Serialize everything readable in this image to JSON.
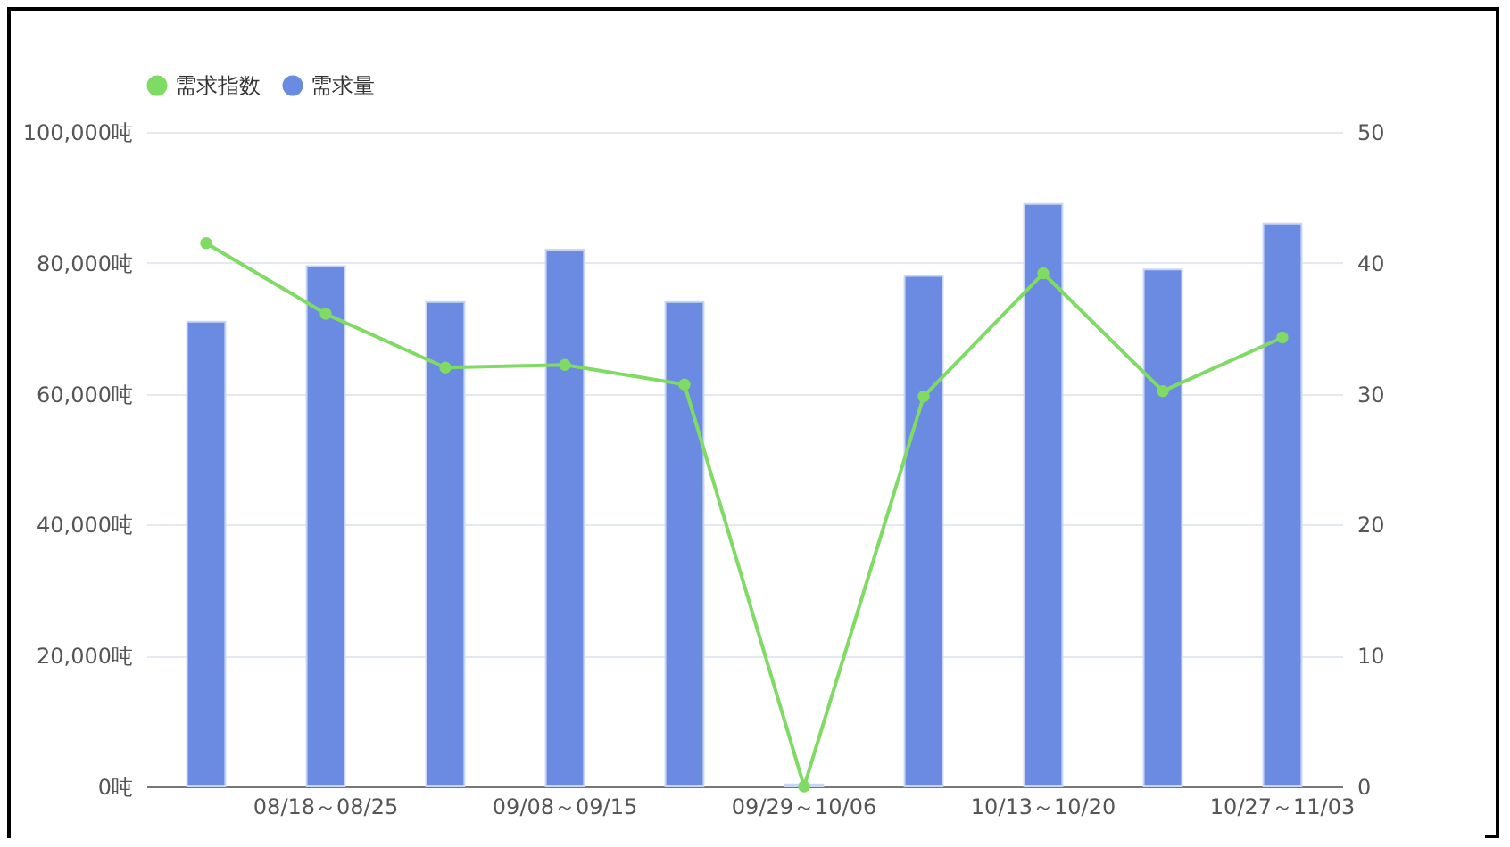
{
  "chart_data": {
    "type": "bar",
    "categories": [
      null,
      "08/18～08/25",
      null,
      "09/08～09/15",
      null,
      "09/29～10/06",
      null,
      "10/13～10/20",
      null,
      "10/27～11/03"
    ],
    "series": [
      {
        "name": "需求指数",
        "type": "line",
        "axis": "y2",
        "color": "#7fdb63",
        "values": [
          41.5,
          36.1,
          32.0,
          32.2,
          30.7,
          0,
          29.8,
          39.2,
          30.2,
          34.3
        ]
      },
      {
        "name": "需求量",
        "color": "#6b8ae2",
        "values": [
          71000,
          79500,
          74000,
          82000,
          74000,
          300,
          78000,
          89000,
          79000,
          86000
        ]
      }
    ],
    "ylim": [
      0,
      100000
    ],
    "yticks": [
      {
        "value": 0,
        "label": "0吨"
      },
      {
        "value": 20000,
        "label": "20,000吨"
      },
      {
        "value": 40000,
        "label": "40,000吨"
      },
      {
        "value": 60000,
        "label": "60,000吨"
      },
      {
        "value": 80000,
        "label": "80,000吨"
      },
      {
        "value": 100000,
        "label": "100,000吨"
      }
    ],
    "y2lim": [
      0,
      50
    ],
    "y2ticks": [
      0,
      10,
      20,
      30,
      40,
      50
    ],
    "grid": "y",
    "legend": "top",
    "marker": "circle"
  }
}
